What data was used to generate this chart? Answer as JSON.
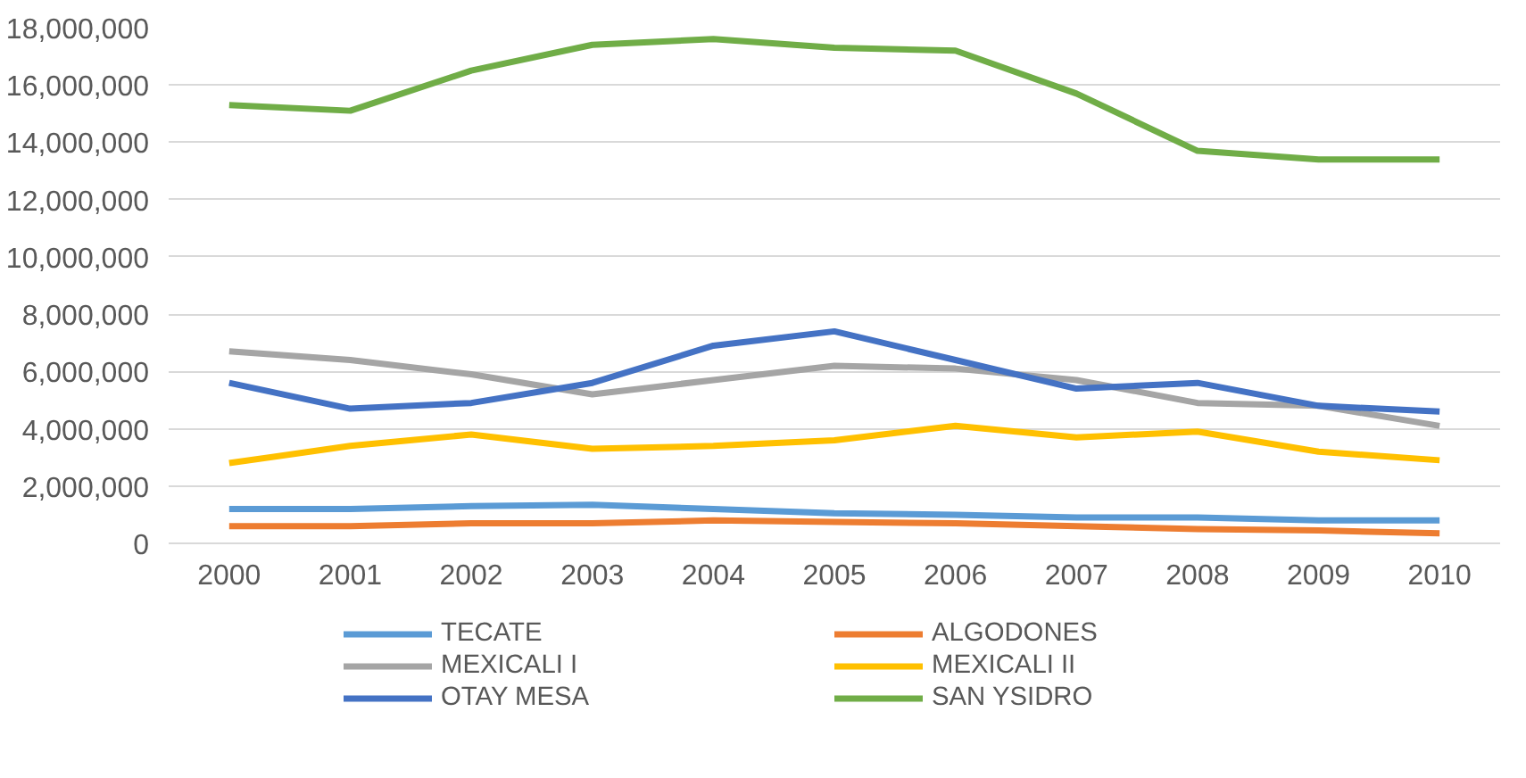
{
  "chart_data": {
    "type": "line",
    "categories": [
      "2000",
      "2001",
      "2002",
      "2003",
      "2004",
      "2005",
      "2006",
      "2007",
      "2008",
      "2009",
      "2010"
    ],
    "series": [
      {
        "name": "TECATE",
        "color": "#5b9bd5",
        "values": [
          1200000,
          1200000,
          1300000,
          1350000,
          1200000,
          1050000,
          1000000,
          900000,
          900000,
          800000,
          800000
        ]
      },
      {
        "name": "ALGODONES",
        "color": "#ed7d31",
        "values": [
          600000,
          600000,
          700000,
          700000,
          800000,
          750000,
          700000,
          600000,
          500000,
          450000,
          350000
        ]
      },
      {
        "name": "MEXICALI I",
        "color": "#a5a5a5",
        "values": [
          6700000,
          6400000,
          5900000,
          5200000,
          5700000,
          6200000,
          6100000,
          5700000,
          4900000,
          4800000,
          4100000
        ]
      },
      {
        "name": "MEXICALI II",
        "color": "#ffc000",
        "values": [
          2800000,
          3400000,
          3800000,
          3300000,
          3400000,
          3600000,
          4100000,
          3700000,
          3900000,
          3200000,
          2900000
        ]
      },
      {
        "name": "OTAY MESA",
        "color": "#4472c4",
        "values": [
          5600000,
          4700000,
          4900000,
          5600000,
          6900000,
          7400000,
          6400000,
          5400000,
          5600000,
          4800000,
          4600000
        ]
      },
      {
        "name": "SAN YSIDRO",
        "color": "#70ad47",
        "values": [
          15300000,
          15100000,
          16500000,
          17400000,
          17600000,
          17300000,
          17200000,
          15700000,
          13700000,
          13400000,
          13400000
        ]
      }
    ],
    "ylim": [
      0,
      18000000
    ],
    "yticks": [
      {
        "value": 0,
        "label": "0"
      },
      {
        "value": 2000000,
        "label": "2,000,000"
      },
      {
        "value": 4000000,
        "label": "4,000,000"
      },
      {
        "value": 6000000,
        "label": "6,000,000"
      },
      {
        "value": 8000000,
        "label": "8,000,000"
      },
      {
        "value": 10000000,
        "label": "10,000,000"
      },
      {
        "value": 12000000,
        "label": "12,000,000"
      },
      {
        "value": 14000000,
        "label": "14,000,000"
      },
      {
        "value": 16000000,
        "label": "16,000,000"
      },
      {
        "value": 18000000,
        "label": "18,000,000"
      }
    ],
    "grid": "y",
    "legend": "bottom",
    "marker": "none",
    "line_style": "solid"
  }
}
